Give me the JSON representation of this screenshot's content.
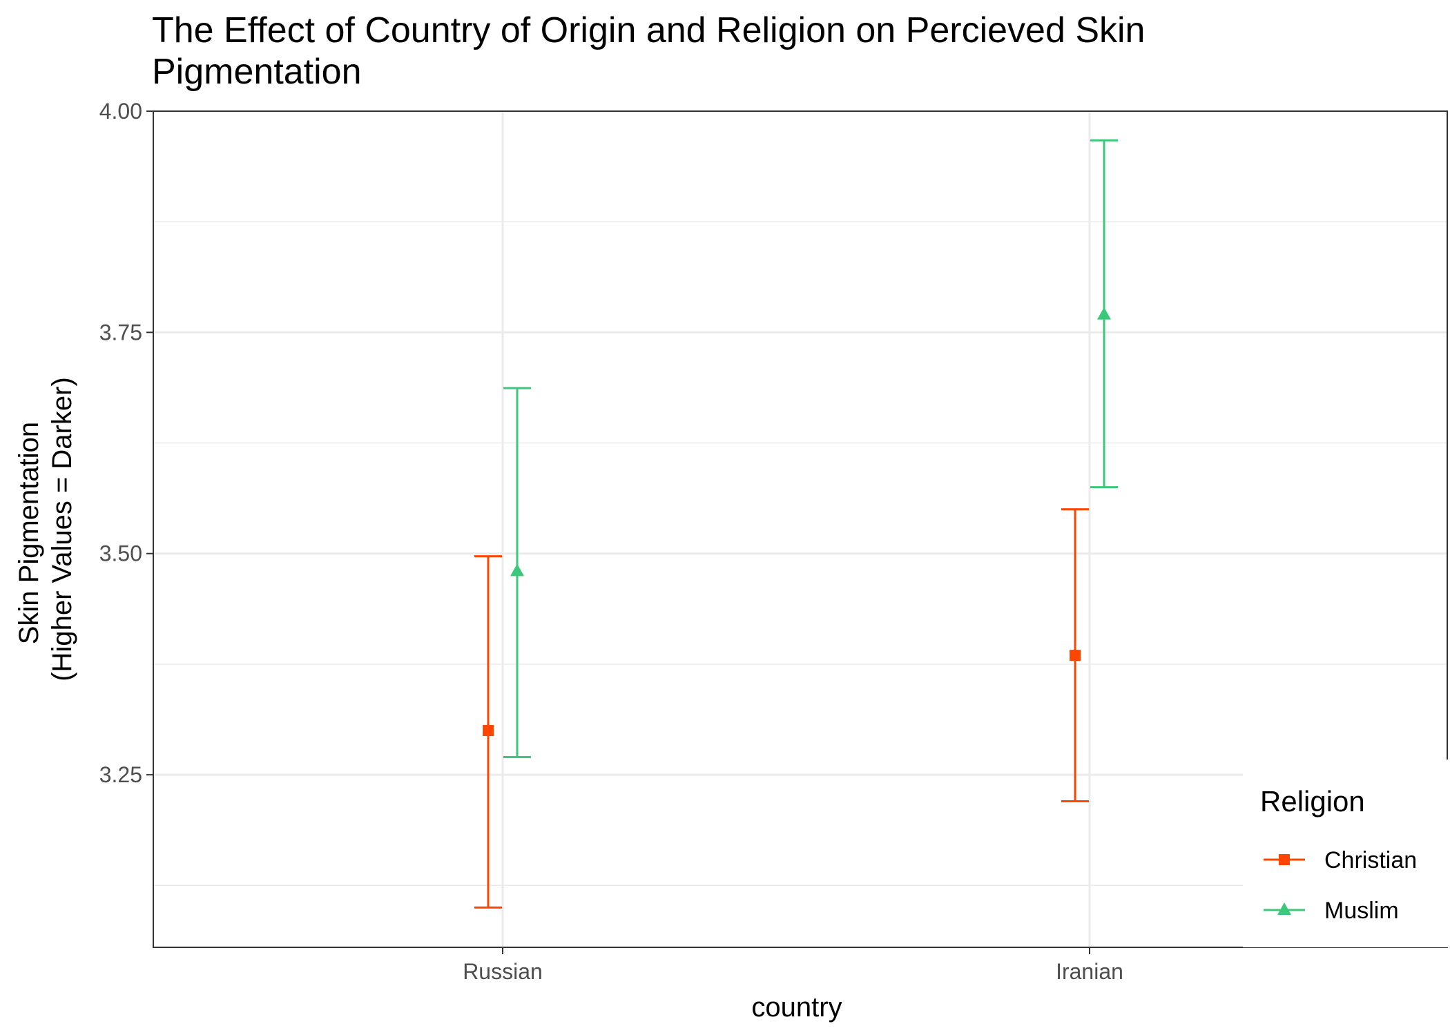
{
  "chart_data": {
    "type": "errorbar",
    "title": "The Effect of Country of Origin and Religion on Percieved Skin Pigmentation",
    "title_lines": [
      "The Effect of Country of Origin and Religion on Percieved Skin",
      "Pigmentation"
    ],
    "xlabel": "country",
    "ylabel_lines": [
      "Skin Pigmentation",
      "(Higher Values = Darker)"
    ],
    "categories": [
      "Russian",
      "Iranian"
    ],
    "ylim": [
      3.055,
      4.0
    ],
    "yticks": [
      3.25,
      3.5,
      3.75,
      4.0
    ],
    "ytick_labels": [
      "3.25",
      "3.50",
      "3.75",
      "4.00"
    ],
    "y_minor_ticks": [
      3.125,
      3.375,
      3.625,
      3.875
    ],
    "grid": true,
    "legend": {
      "title": "Religion",
      "position": "bottom-right"
    },
    "series": [
      {
        "name": "Christian",
        "color": "#FF4500",
        "marker": "square",
        "values": [
          3.3,
          3.385
        ],
        "lower": [
          3.1,
          3.22
        ],
        "upper": [
          3.497,
          3.55
        ]
      },
      {
        "name": "Muslim",
        "color": "#3CC87A",
        "marker": "triangle",
        "values": [
          3.48,
          3.77
        ],
        "lower": [
          3.27,
          3.575
        ],
        "upper": [
          3.687,
          3.967
        ]
      }
    ]
  }
}
